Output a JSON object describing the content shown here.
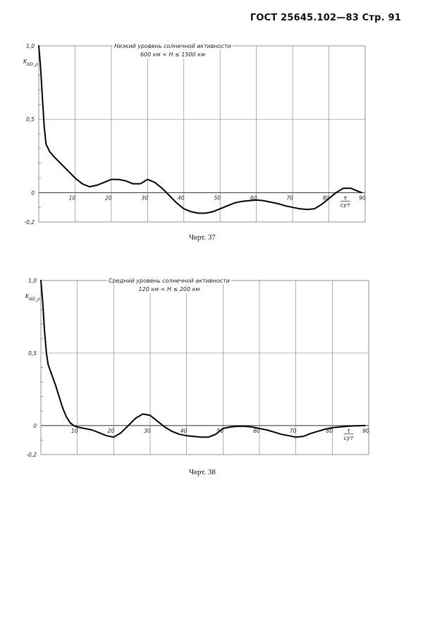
{
  "page": {
    "header": "ГОСТ 25645.102—83 Стр. 91"
  },
  "chart_data": [
    {
      "type": "line",
      "title": "Низкий уровень солнечной активности",
      "subtitle": "600 км < H ≤ 1500 км",
      "caption": "Черт. 37",
      "ylabel": "K_{ΔD_ρ}",
      "xlabel": "τ/сут",
      "xlim": [
        0,
        90
      ],
      "ylim": [
        -0.2,
        1.0
      ],
      "x_ticks": [
        "10",
        "20",
        "30",
        "40",
        "50",
        "60",
        "70",
        "80",
        "90"
      ],
      "y_ticks": [
        "1,0",
        "0,5",
        "0",
        "-0,2"
      ],
      "grid": true,
      "series": [
        {
          "x": [
            0,
            0.5,
            1,
            1.5,
            2,
            3,
            4,
            6,
            8,
            10,
            12,
            14,
            16,
            18,
            20,
            22,
            24,
            26,
            28,
            30,
            32,
            34,
            36,
            38,
            40,
            42,
            44,
            46,
            48,
            50,
            52,
            54,
            56,
            58,
            60,
            62,
            64,
            66,
            68,
            70,
            72,
            74,
            76,
            78,
            80,
            82,
            84,
            86,
            88,
            89
          ],
          "y": [
            1.0,
            0.85,
            0.65,
            0.45,
            0.33,
            0.28,
            0.25,
            0.2,
            0.15,
            0.1,
            0.06,
            0.04,
            0.05,
            0.07,
            0.09,
            0.09,
            0.08,
            0.06,
            0.06,
            0.09,
            0.07,
            0.03,
            -0.02,
            -0.07,
            -0.11,
            -0.13,
            -0.14,
            -0.14,
            -0.13,
            -0.11,
            -0.09,
            -0.07,
            -0.06,
            -0.055,
            -0.05,
            -0.055,
            -0.065,
            -0.075,
            -0.09,
            -0.1,
            -0.11,
            -0.115,
            -0.11,
            -0.08,
            -0.04,
            0.0,
            0.03,
            0.03,
            0.01,
            0.0
          ]
        }
      ]
    },
    {
      "type": "line",
      "title": "Средний уровень солнечной активности",
      "subtitle": "120 км < H ≤ 200 км",
      "caption": "Черт. 38",
      "ylabel": "K_{ΔD_ρ}",
      "xlabel": "τ/сут",
      "xlim": [
        0,
        90
      ],
      "ylim": [
        -0.2,
        1.0
      ],
      "x_ticks": [
        "10",
        "20",
        "30",
        "40",
        "50",
        "60",
        "70",
        "80",
        "90"
      ],
      "y_ticks": [
        "1,0",
        "0,5",
        "0",
        "-0,2"
      ],
      "grid": true,
      "series": [
        {
          "x": [
            0,
            0.5,
            1,
            1.5,
            2,
            3,
            4,
            5,
            6,
            7,
            8,
            9,
            10,
            12,
            14,
            16,
            18,
            20,
            22,
            24,
            26,
            28,
            30,
            32,
            34,
            36,
            38,
            40,
            42,
            44,
            46,
            48,
            50,
            52,
            54,
            56,
            58,
            60,
            62,
            64,
            66,
            68,
            70,
            72,
            74,
            76,
            78,
            80,
            82,
            84,
            86,
            88,
            89
          ],
          "y": [
            1.0,
            0.85,
            0.65,
            0.5,
            0.42,
            0.35,
            0.28,
            0.2,
            0.12,
            0.06,
            0.02,
            0.0,
            -0.01,
            -0.02,
            -0.03,
            -0.05,
            -0.07,
            -0.08,
            -0.05,
            0.0,
            0.05,
            0.08,
            0.07,
            0.03,
            -0.01,
            -0.04,
            -0.06,
            -0.07,
            -0.075,
            -0.08,
            -0.08,
            -0.06,
            -0.02,
            -0.01,
            -0.005,
            -0.005,
            -0.01,
            -0.02,
            -0.03,
            -0.045,
            -0.06,
            -0.07,
            -0.08,
            -0.075,
            -0.055,
            -0.04,
            -0.025,
            -0.015,
            -0.01,
            -0.005,
            -0.002,
            -0.001,
            0.0
          ]
        }
      ]
    }
  ]
}
